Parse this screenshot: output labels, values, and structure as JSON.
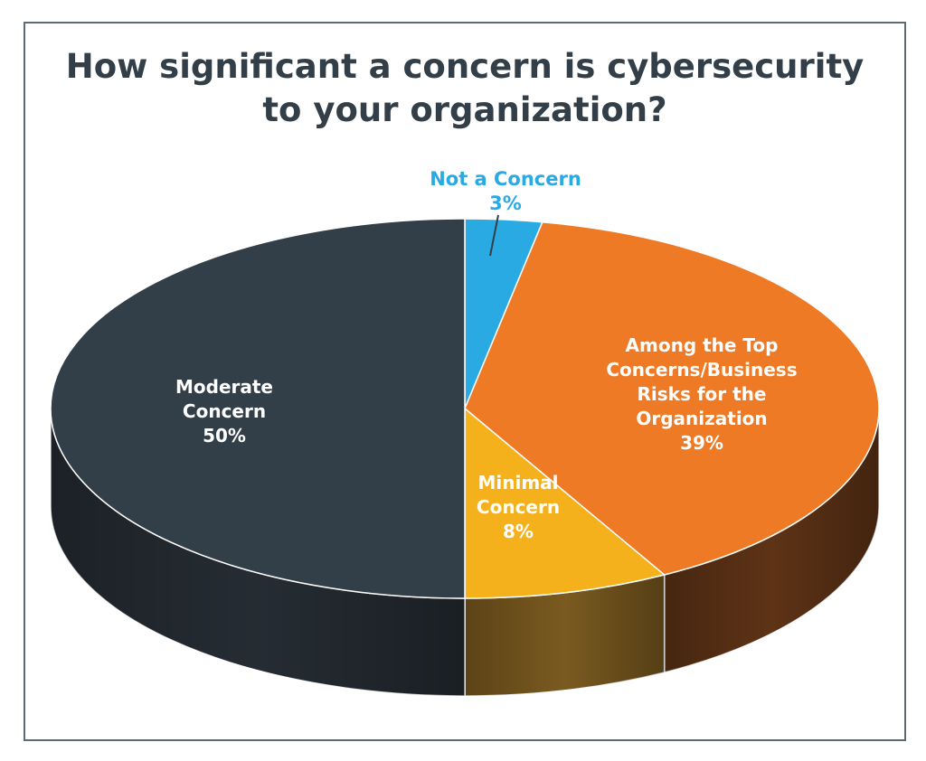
{
  "chart_data": {
    "type": "pie",
    "title": [
      "How significant a concern is cybersecurity",
      "to your organization?"
    ],
    "slices": [
      {
        "label": [
          "Not a Concern"
        ],
        "percent_label": "3%",
        "value": 3,
        "color": "#29aae2",
        "side_color": "#1b6f95"
      },
      {
        "label": [
          "Among the Top",
          "Concerns/Business",
          "Risks for the",
          "Organization"
        ],
        "percent_label": "39%",
        "value": 39,
        "color": "#ee7a25",
        "side_color": "#5e3316"
      },
      {
        "label": [
          "Minimal",
          "Concern"
        ],
        "percent_label": "8%",
        "value": 8,
        "color": "#f4b11c",
        "side_color": "#7a5a1f"
      },
      {
        "label": [
          "Moderate",
          "Concern"
        ],
        "percent_label": "50%",
        "value": 50,
        "color": "#333f48",
        "side_color": "#252c33"
      }
    ],
    "style": "3d-pie",
    "start": "top, clockwise",
    "legend": "none"
  }
}
